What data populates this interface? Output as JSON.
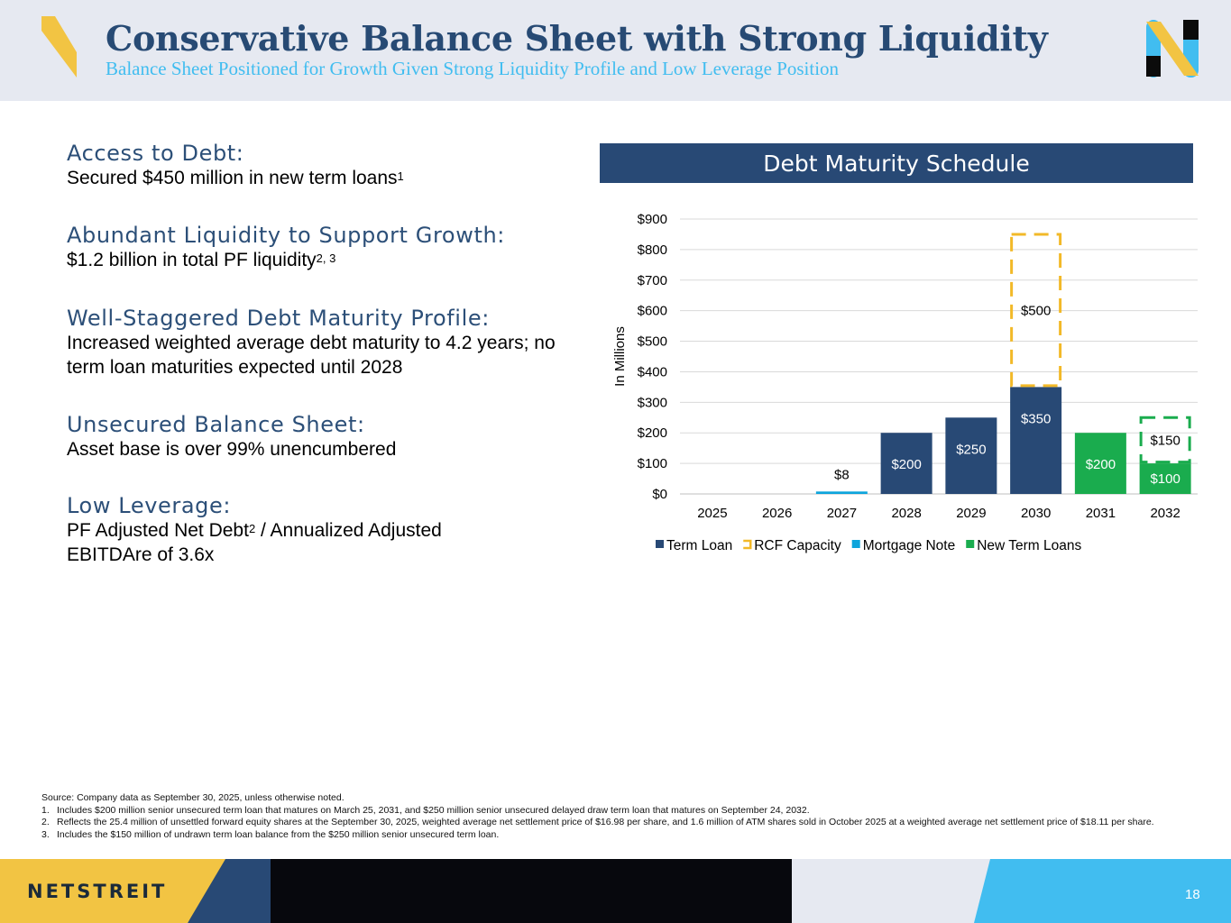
{
  "header": {
    "title": "Conservative Balance Sheet with Strong Liquidity",
    "subtitle": "Balance Sheet Positioned for Growth Given Strong Liquidity Profile and Low Leverage Position"
  },
  "bullets": [
    {
      "heading": "Access to Debt:",
      "text": "Secured $450 million in new term loans",
      "sup": "1",
      "text2": ""
    },
    {
      "heading": "Abundant Liquidity to Support Growth:",
      "text": "$1.2 billion in total PF liquidity",
      "sup": "2, 3",
      "text2": ""
    },
    {
      "heading": "Well-Staggered Debt Maturity Profile:",
      "text": "Increased weighted average debt maturity to 4.2 years; no term loan maturities expected until 2028",
      "sup": "",
      "text2": ""
    },
    {
      "heading": "Unsecured Balance Sheet:",
      "text": "Asset base is over 99% unencumbered",
      "sup": "",
      "text2": ""
    },
    {
      "heading": "Low Leverage:",
      "text": "PF Adjusted Net Debt",
      "sup": "2",
      "text2": " / Annualized Adjusted EBITDAre of 3.6x"
    }
  ],
  "chart_header": "Debt Maturity Schedule",
  "chart_data": {
    "type": "bar",
    "stacked": true,
    "ylabel": "In Millions",
    "xlabel": "",
    "ylim": [
      0,
      900
    ],
    "yticks": [
      "$0",
      "$100",
      "$200",
      "$300",
      "$400",
      "$500",
      "$600",
      "$700",
      "$800",
      "$900"
    ],
    "categories": [
      "2025",
      "2026",
      "2027",
      "2028",
      "2029",
      "2030",
      "2031",
      "2032"
    ],
    "grid": true,
    "legend_position": "bottom",
    "series": [
      {
        "name": "Term Loan",
        "color": "#284975",
        "values": [
          0,
          0,
          0,
          200,
          250,
          350,
          0,
          0
        ],
        "labels": [
          "",
          "",
          "",
          "$200",
          "$250",
          "$350",
          "",
          ""
        ],
        "style": "solid"
      },
      {
        "name": "RCF Capacity",
        "color": "#f2b928",
        "values": [
          0,
          0,
          0,
          0,
          0,
          500,
          0,
          0
        ],
        "labels": [
          "",
          "",
          "",
          "",
          "",
          "$500",
          "",
          ""
        ],
        "style": "dashed"
      },
      {
        "name": "Mortgage Note",
        "color": "#0ea5dc",
        "values": [
          0,
          0,
          8,
          0,
          0,
          0,
          0,
          0
        ],
        "labels": [
          "",
          "",
          "$8",
          "",
          "",
          "",
          "",
          ""
        ],
        "style": "solid"
      },
      {
        "name": "New Term Loans",
        "color": "#1aac4e",
        "values": [
          0,
          0,
          0,
          0,
          0,
          0,
          200,
          100
        ],
        "labels": [
          "",
          "",
          "",
          "",
          "",
          "",
          "$200",
          "$100"
        ],
        "style": "solid"
      },
      {
        "name": "",
        "color": "#1aac4e",
        "values": [
          0,
          0,
          0,
          0,
          0,
          0,
          0,
          150
        ],
        "labels": [
          "",
          "",
          "",
          "",
          "",
          "",
          "",
          "$150"
        ],
        "style": "dashed"
      }
    ]
  },
  "footnotes": {
    "source": "Source: Company data as September 30, 2025, unless otherwise noted.",
    "items": [
      {
        "num": "1.",
        "text": "Includes $200 million senior unsecured term loan that matures on March 25, 2031, and $250 million senior unsecured delayed draw term loan that matures on September 24, 2032."
      },
      {
        "num": "2.",
        "text": "Reflects the 25.4 million of unsettled forward equity shares at the September 30, 2025, weighted average net settlement price of $16.98 per share, and 1.6 million of ATM shares sold in October 2025 at a weighted average net settlement price of $18.11 per share."
      },
      {
        "num": "3.",
        "text": "Includes the $150 million of undrawn term loan balance from the $250 million senior unsecured term loan."
      }
    ]
  },
  "footer": {
    "brand": "NETSTREIT",
    "page_number": "18",
    "colors": {
      "gold": "#f2c443",
      "navy": "#284975",
      "black": "#07080d",
      "light": "#e6e9f1",
      "cyan": "#41bdf0"
    }
  }
}
